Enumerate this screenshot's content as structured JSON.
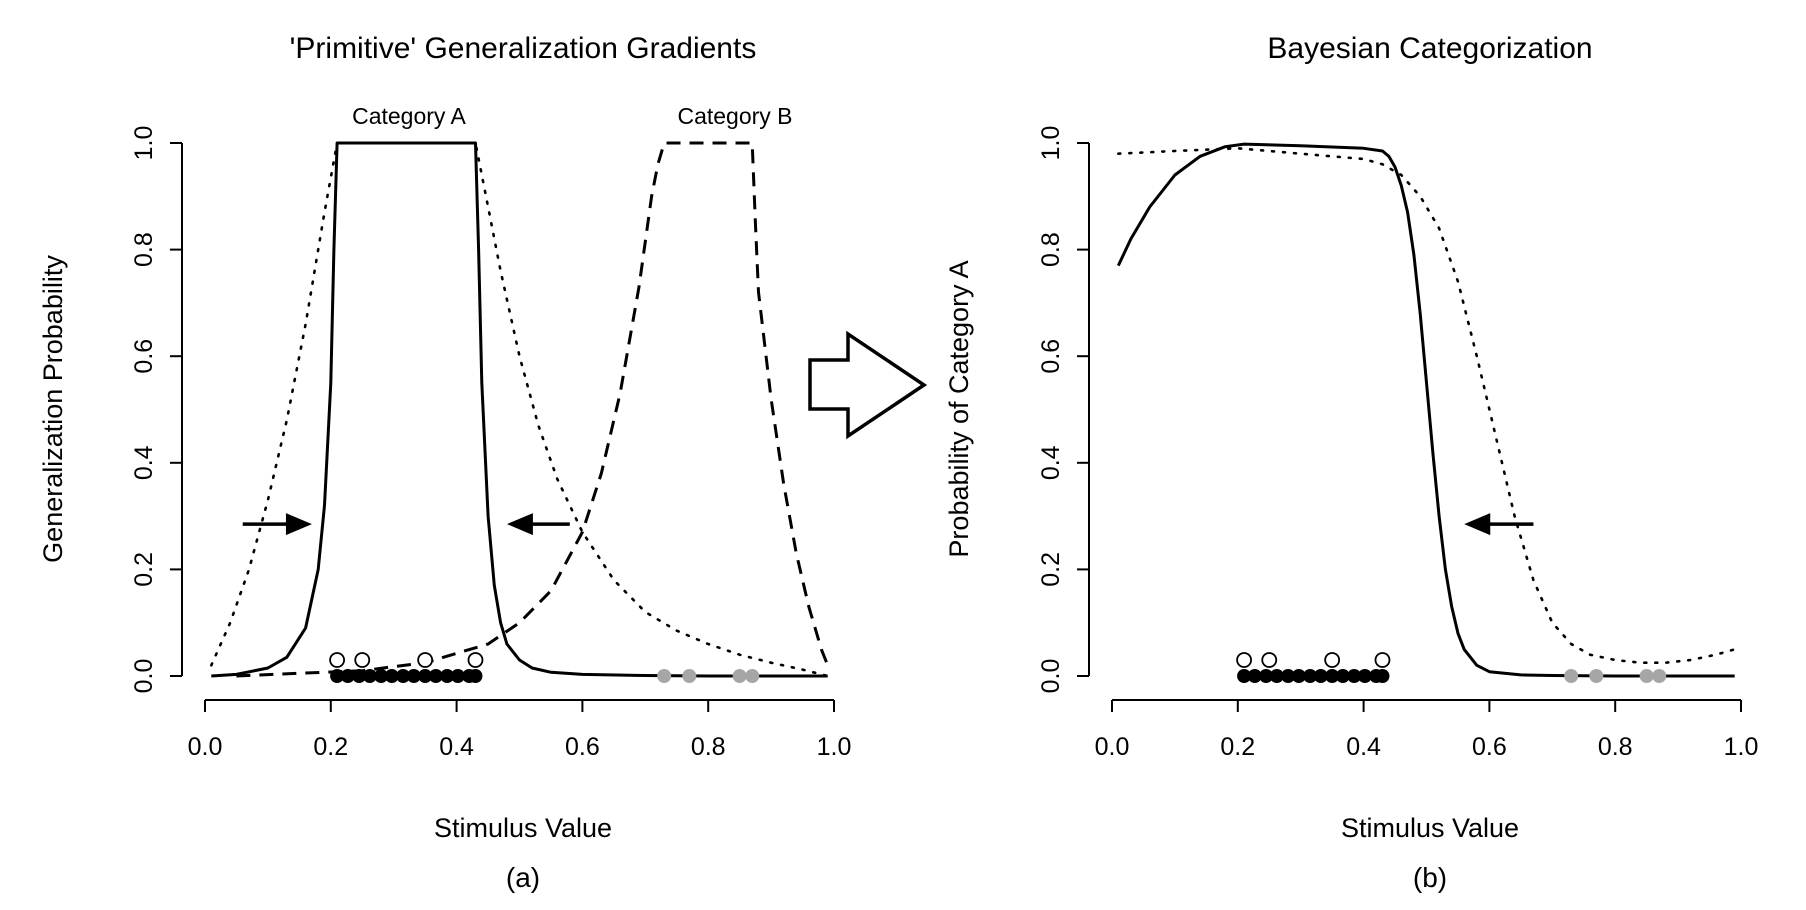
{
  "chart_data": [
    {
      "type": "line",
      "title": "'Primitive' Generalization Gradients",
      "xlabel": "Stimulus Value",
      "ylabel": "Generalization Probability",
      "panel_label": "(a)",
      "xlim": [
        0,
        1
      ],
      "ylim": [
        0,
        1
      ],
      "xticks": [
        0.0,
        0.2,
        0.4,
        0.6,
        0.8,
        1.0
      ],
      "yticks": [
        0.0,
        0.2,
        0.4,
        0.6,
        0.8,
        1.0
      ],
      "xtick_labels": [
        "0.0",
        "0.2",
        "0.4",
        "0.6",
        "0.8",
        "1.0"
      ],
      "ytick_labels": [
        "0.0",
        "0.2",
        "0.4",
        "0.6",
        "0.8",
        "1.0"
      ],
      "grid": false,
      "annotations": [
        {
          "text": "Category A",
          "x": 0.32,
          "y": 1.04
        },
        {
          "text": "Category B",
          "x": 0.8,
          "y": 1.04
        }
      ],
      "arrows": [
        {
          "direction": "right",
          "x_from": 0.06,
          "x_to": 0.17,
          "y": 0.285
        },
        {
          "direction": "left",
          "x_from": 0.58,
          "x_to": 0.48,
          "y": 0.285
        }
      ],
      "series": [
        {
          "style": "solid",
          "x": [
            0.01,
            0.05,
            0.1,
            0.13,
            0.16,
            0.18,
            0.19,
            0.2,
            0.205,
            0.21,
            0.43,
            0.435,
            0.44,
            0.45,
            0.46,
            0.47,
            0.48,
            0.5,
            0.52,
            0.55,
            0.6,
            0.7,
            0.8,
            0.99
          ],
          "y": [
            0.0,
            0.003,
            0.015,
            0.035,
            0.09,
            0.2,
            0.32,
            0.55,
            0.8,
            1.0,
            1.0,
            0.8,
            0.55,
            0.3,
            0.17,
            0.1,
            0.06,
            0.03,
            0.015,
            0.007,
            0.003,
            0.001,
            0.0,
            0.0
          ]
        },
        {
          "style": "dotted",
          "x": [
            0.01,
            0.04,
            0.07,
            0.1,
            0.13,
            0.16,
            0.19,
            0.21,
            0.43,
            0.45,
            0.47,
            0.5,
            0.53,
            0.56,
            0.6,
            0.65,
            0.7,
            0.75,
            0.8,
            0.85,
            0.9,
            0.95,
            0.99
          ],
          "y": [
            0.02,
            0.1,
            0.2,
            0.33,
            0.48,
            0.66,
            0.87,
            1.0,
            1.0,
            0.88,
            0.76,
            0.6,
            0.47,
            0.37,
            0.27,
            0.18,
            0.12,
            0.085,
            0.06,
            0.04,
            0.025,
            0.012,
            0.0
          ]
        },
        {
          "style": "dashed",
          "x": [
            0.05,
            0.15,
            0.25,
            0.35,
            0.45,
            0.5,
            0.55,
            0.6,
            0.63,
            0.66,
            0.69,
            0.71,
            0.72,
            0.73,
            0.87,
            0.875,
            0.88,
            0.9,
            0.92,
            0.94,
            0.96,
            0.98,
            0.99
          ],
          "y": [
            0.0,
            0.005,
            0.01,
            0.025,
            0.06,
            0.1,
            0.16,
            0.27,
            0.38,
            0.53,
            0.73,
            0.9,
            0.96,
            1.0,
            1.0,
            0.85,
            0.72,
            0.52,
            0.36,
            0.23,
            0.13,
            0.05,
            0.02
          ]
        }
      ],
      "points": {
        "category_a_filled": [
          0.21,
          0.227,
          0.245,
          0.262,
          0.28,
          0.297,
          0.315,
          0.332,
          0.35,
          0.367,
          0.385,
          0.402,
          0.42,
          0.43
        ],
        "category_a_open": [
          0.21,
          0.25,
          0.35,
          0.43
        ],
        "category_b_gray": [
          0.73,
          0.77,
          0.85,
          0.87
        ]
      }
    },
    {
      "type": "line",
      "title": "Bayesian Categorization",
      "xlabel": "Stimulus Value",
      "ylabel": "Probability of Category A",
      "panel_label": "(b)",
      "xlim": [
        0,
        1
      ],
      "ylim": [
        0,
        1
      ],
      "xticks": [
        0.0,
        0.2,
        0.4,
        0.6,
        0.8,
        1.0
      ],
      "yticks": [
        0.0,
        0.2,
        0.4,
        0.6,
        0.8,
        1.0
      ],
      "xtick_labels": [
        "0.0",
        "0.2",
        "0.4",
        "0.6",
        "0.8",
        "1.0"
      ],
      "ytick_labels": [
        "0.0",
        "0.2",
        "0.4",
        "0.6",
        "0.8",
        "1.0"
      ],
      "grid": false,
      "arrows": [
        {
          "direction": "left",
          "x_from": 0.67,
          "x_to": 0.56,
          "y": 0.285
        }
      ],
      "series": [
        {
          "style": "solid",
          "x": [
            0.01,
            0.03,
            0.06,
            0.1,
            0.14,
            0.18,
            0.21,
            0.3,
            0.4,
            0.43,
            0.44,
            0.45,
            0.46,
            0.47,
            0.48,
            0.49,
            0.5,
            0.51,
            0.52,
            0.53,
            0.54,
            0.55,
            0.56,
            0.58,
            0.6,
            0.65,
            0.7,
            0.8,
            0.99
          ],
          "y": [
            0.77,
            0.82,
            0.88,
            0.94,
            0.975,
            0.993,
            0.998,
            0.995,
            0.99,
            0.985,
            0.975,
            0.955,
            0.92,
            0.87,
            0.79,
            0.68,
            0.55,
            0.42,
            0.3,
            0.2,
            0.13,
            0.08,
            0.05,
            0.02,
            0.008,
            0.002,
            0.001,
            0.0,
            0.0
          ]
        },
        {
          "style": "dotted",
          "x": [
            0.01,
            0.1,
            0.2,
            0.3,
            0.4,
            0.43,
            0.46,
            0.49,
            0.52,
            0.55,
            0.58,
            0.61,
            0.64,
            0.67,
            0.7,
            0.73,
            0.76,
            0.8,
            0.84,
            0.88,
            0.92,
            0.96,
            0.99
          ],
          "y": [
            0.98,
            0.985,
            0.99,
            0.98,
            0.97,
            0.96,
            0.94,
            0.9,
            0.84,
            0.74,
            0.6,
            0.45,
            0.3,
            0.18,
            0.1,
            0.06,
            0.04,
            0.03,
            0.025,
            0.025,
            0.03,
            0.04,
            0.05
          ]
        }
      ],
      "points": {
        "category_a_filled": [
          0.21,
          0.227,
          0.245,
          0.262,
          0.28,
          0.297,
          0.315,
          0.332,
          0.35,
          0.367,
          0.385,
          0.402,
          0.42,
          0.43
        ],
        "category_a_open": [
          0.21,
          0.25,
          0.35,
          0.43
        ],
        "category_b_gray": [
          0.73,
          0.77,
          0.85,
          0.87
        ]
      }
    }
  ],
  "colors": {
    "line": "#000000",
    "category_b_points": "#a6a6a6",
    "background": "#ffffff"
  },
  "center_arrow": {
    "direction": "right"
  }
}
